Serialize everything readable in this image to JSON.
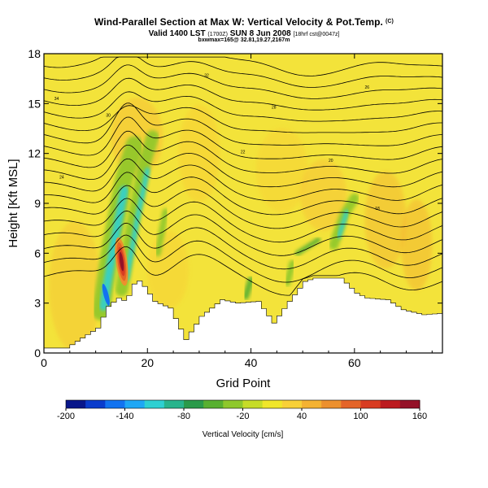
{
  "header": {
    "title": "Wind-Parallel Section at Max W: Vertical Velocity & Pot.Temp.",
    "title_units": "(C)",
    "valid_prefix": "Valid 1400 LST",
    "valid_utc": "(1700Z)",
    "valid_date": "SUN 8 Jun 2008",
    "valid_fcst": "[18hrf cst@0047z]",
    "subtitle": "bxwmax=165@ 32.81,19.27,2167m"
  },
  "chart_data": {
    "type": "heatmap",
    "title": "Wind-Parallel Section at Max W: Vertical Velocity & Pot.Temp.",
    "xlabel": "Grid Point",
    "ylabel": "Height [Kft MSL]",
    "xlim": [
      0,
      77
    ],
    "ylim": [
      0,
      18
    ],
    "x_ticks": [
      0,
      20,
      40,
      60
    ],
    "y_ticks": [
      0,
      3,
      6,
      9,
      12,
      15,
      18
    ],
    "colorbar": {
      "title": "Vertical Velocity [cm/s]",
      "min": -200,
      "max": 160,
      "step": 20,
      "tick_labels": [
        "-200",
        "-140",
        "-80",
        "-20",
        "40",
        "100",
        "160"
      ],
      "tick_values": [
        -200,
        -140,
        -80,
        -20,
        40,
        100,
        160
      ],
      "colors": [
        "#08168a",
        "#0a3ccc",
        "#1273f0",
        "#1ea7f5",
        "#2ed0d2",
        "#28b48c",
        "#2a9a4a",
        "#58b030",
        "#8ec82c",
        "#c6dc28",
        "#f0e62a",
        "#f8d038",
        "#f4b232",
        "#ec902e",
        "#e46428",
        "#d83c22",
        "#bc1a1e",
        "#941228"
      ]
    },
    "terrain_height_kft": [
      {
        "x": 0,
        "h": 0.3
      },
      {
        "x": 4,
        "h": 0.3
      },
      {
        "x": 10,
        "h": 1.5
      },
      {
        "x": 12,
        "h": 2.8
      },
      {
        "x": 14,
        "h": 3.3
      },
      {
        "x": 15.5,
        "h": 3.1
      },
      {
        "x": 17.5,
        "h": 4.5
      },
      {
        "x": 19,
        "h": 4.0
      },
      {
        "x": 21,
        "h": 3.1
      },
      {
        "x": 24,
        "h": 2.7
      },
      {
        "x": 27,
        "h": 0.8
      },
      {
        "x": 30,
        "h": 2.2
      },
      {
        "x": 34,
        "h": 3.2
      },
      {
        "x": 37,
        "h": 3.0
      },
      {
        "x": 41,
        "h": 3.1
      },
      {
        "x": 44,
        "h": 1.8
      },
      {
        "x": 47,
        "h": 3.1
      },
      {
        "x": 50,
        "h": 4.3
      },
      {
        "x": 52,
        "h": 4.5
      },
      {
        "x": 57,
        "h": 4.5
      },
      {
        "x": 60,
        "h": 3.6
      },
      {
        "x": 62,
        "h": 3.3
      },
      {
        "x": 66,
        "h": 3.2
      },
      {
        "x": 69,
        "h": 2.6
      },
      {
        "x": 73,
        "h": 2.3
      },
      {
        "x": 77,
        "h": 2.4
      }
    ],
    "isentrope_labels": [
      "34",
      "32",
      "30",
      "28",
      "26",
      "24",
      "22",
      "20",
      "18"
    ],
    "w_features": [
      {
        "name": "updraft-core",
        "x_center": 15,
        "z_top_kft": 8.8,
        "w_max_cms": 160
      },
      {
        "name": "updraft-wave-2",
        "x_center": 20,
        "z_top_kft": 11,
        "w_max_cms": -60
      },
      {
        "name": "updraft-wave-3",
        "x_center": 58,
        "z_top_kft": 8.5,
        "w_max_cms": -80
      }
    ]
  }
}
